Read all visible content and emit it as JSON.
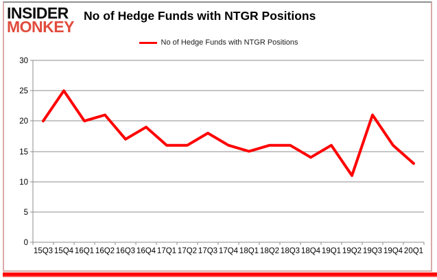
{
  "logo": {
    "line1": "INSIDER",
    "line2": "MONKEY"
  },
  "header": {
    "title": "No of Hedge Funds with NTGR Positions"
  },
  "legend": {
    "label": "No of Hedge Funds with NTGR Positions"
  },
  "colors": {
    "series": "#ff0000",
    "grid": "#8c8c8c",
    "axis": "#8c8c8c",
    "tick_text": "#000000",
    "logo_primary": "#0d0d0d",
    "logo_accent": "#e14b3c",
    "bottom_bar": "#ff0000",
    "frame_border": "#d9a9a9"
  },
  "chart_data": {
    "type": "line",
    "title": "No of Hedge Funds with NTGR Positions",
    "categories": [
      "15Q3",
      "15Q4",
      "16Q1",
      "16Q2",
      "16Q3",
      "16Q4",
      "17Q1",
      "17Q2",
      "17Q3",
      "17Q4",
      "18Q1",
      "18Q2",
      "18Q3",
      "18Q4",
      "19Q1",
      "19Q2",
      "19Q3",
      "19Q4",
      "20Q1"
    ],
    "series": [
      {
        "name": "No of Hedge Funds with NTGR Positions",
        "values": [
          20,
          25,
          20,
          21,
          17,
          19,
          16,
          16,
          18,
          16,
          15,
          16,
          16,
          14,
          16,
          11,
          21,
          16,
          13
        ]
      }
    ],
    "xlabel": "",
    "ylabel": "",
    "ylim": [
      0,
      30
    ],
    "yticks": [
      0,
      5,
      10,
      15,
      20,
      25,
      30
    ],
    "grid": true,
    "legend_position": "top-center",
    "markers": false
  }
}
